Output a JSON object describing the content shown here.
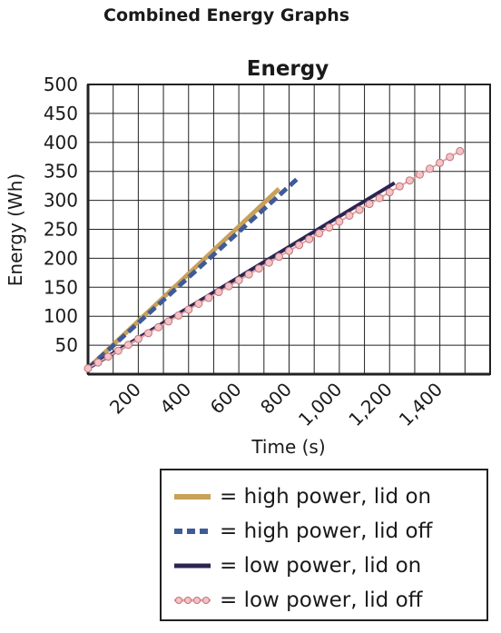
{
  "page": {
    "title": "Combined Energy Graphs"
  },
  "chart_data": {
    "type": "line",
    "title": "Energy",
    "xlabel": "Time (s)",
    "ylabel": "Energy (Wh)",
    "xlim": [
      0,
      1600
    ],
    "ylim": [
      0,
      500
    ],
    "x_ticks": [
      200,
      400,
      600,
      800,
      1000,
      1200,
      1400
    ],
    "x_tick_labels": [
      "200",
      "400",
      "600",
      "800",
      "1,000",
      "1,200",
      "1,400"
    ],
    "y_ticks": [
      50,
      100,
      150,
      200,
      250,
      300,
      350,
      400,
      450,
      500
    ],
    "grid": true,
    "series": [
      {
        "name": "= high power, lid on",
        "style": "solid",
        "color": "#c8a15a",
        "x": [
          0,
          760
        ],
        "y": [
          10,
          320
        ]
      },
      {
        "name": "= high power, lid off",
        "style": "dashed",
        "color": "#3f5a98",
        "x": [
          0,
          840
        ],
        "y": [
          10,
          340
        ]
      },
      {
        "name": "= low power, lid on",
        "style": "solid",
        "color": "#2b2552",
        "x": [
          0,
          1220
        ],
        "y": [
          10,
          330
        ]
      },
      {
        "name": "= low power, lid off",
        "style": "dotted-markers",
        "color": "#e7a3a6",
        "x": [
          0,
          1480
        ],
        "y": [
          10,
          385
        ]
      }
    ]
  }
}
